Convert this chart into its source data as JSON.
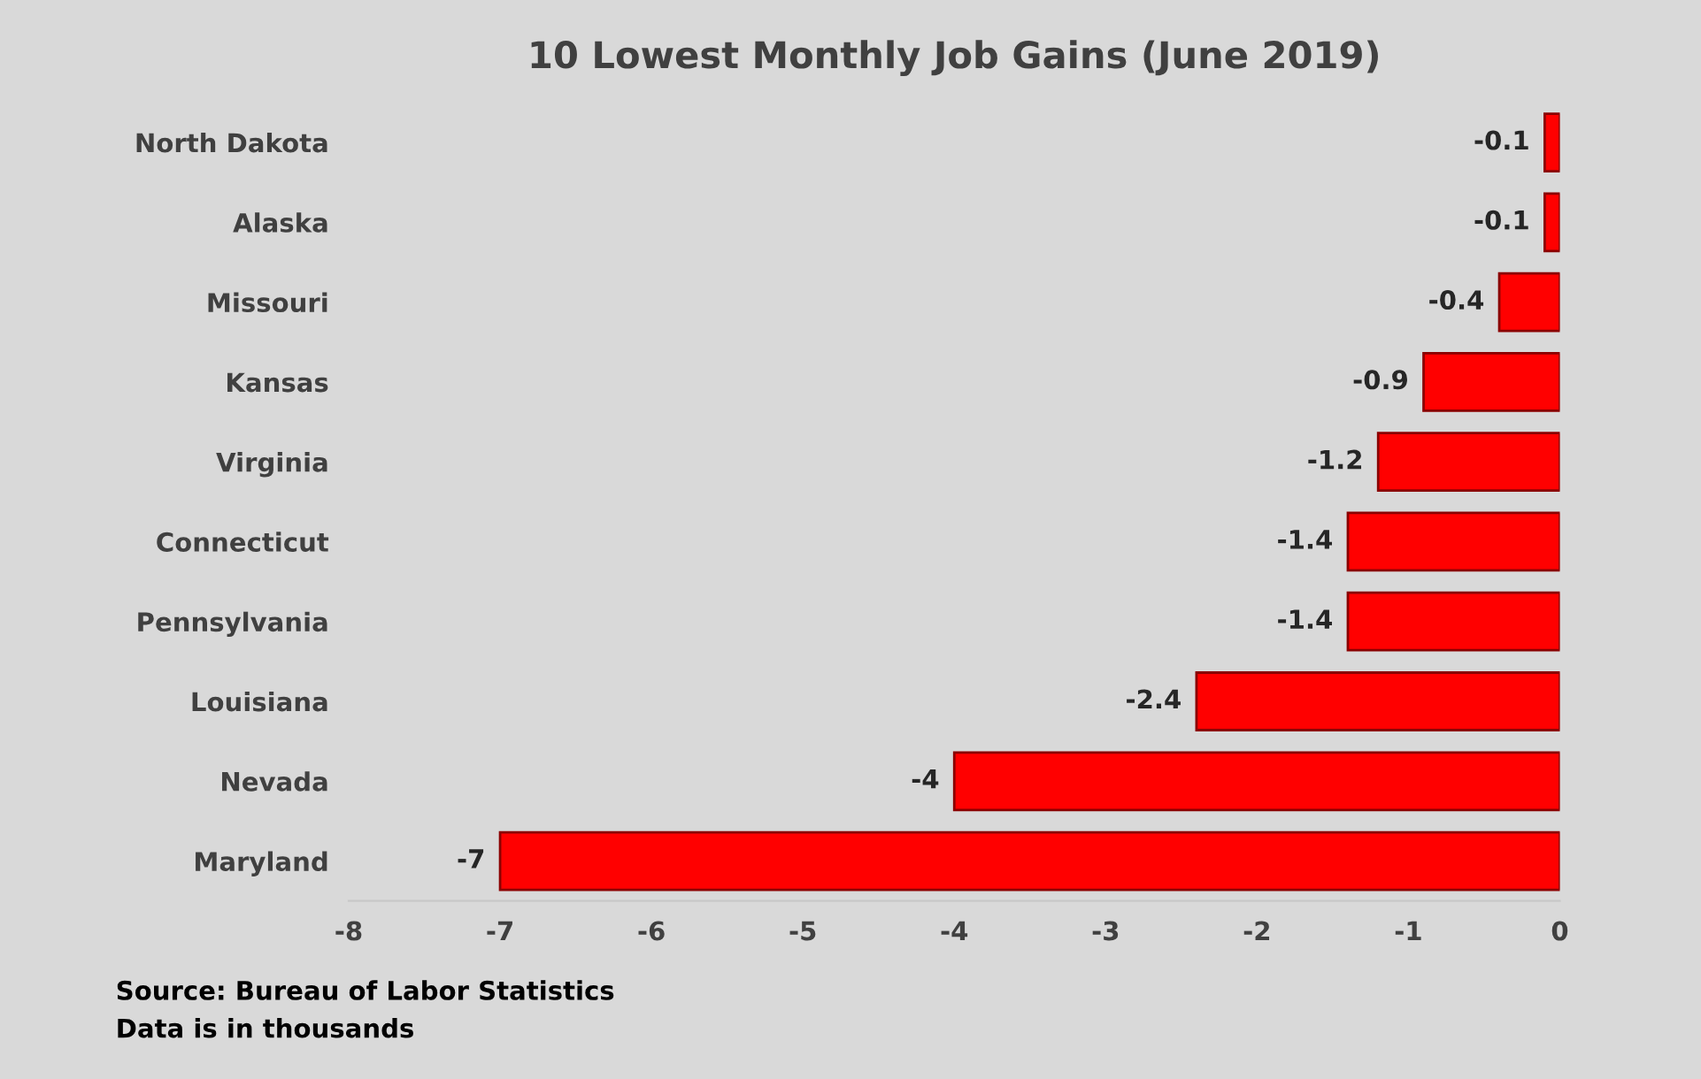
{
  "chart_data": {
    "type": "bar",
    "orientation": "horizontal",
    "title": "10 Lowest Monthly Job Gains (June 2019)",
    "categories": [
      "North Dakota",
      "Alaska",
      "Missouri",
      "Kansas",
      "Virginia",
      "Connecticut",
      "Pennsylvania",
      "Louisiana",
      "Nevada",
      "Maryland"
    ],
    "values": [
      -0.1,
      -0.1,
      -0.4,
      -0.9,
      -1.2,
      -1.4,
      -1.4,
      -2.4,
      -4,
      -7
    ],
    "color": "#ff0000",
    "xlim": [
      -8,
      0
    ],
    "xticks": [
      -8,
      -7,
      -6,
      -5,
      -4,
      -3,
      -2,
      -1,
      0
    ],
    "data_labels": true,
    "grid": false,
    "annotations": [
      "Source: Bureau of Labor Statistics",
      "Data is in thousands"
    ]
  }
}
